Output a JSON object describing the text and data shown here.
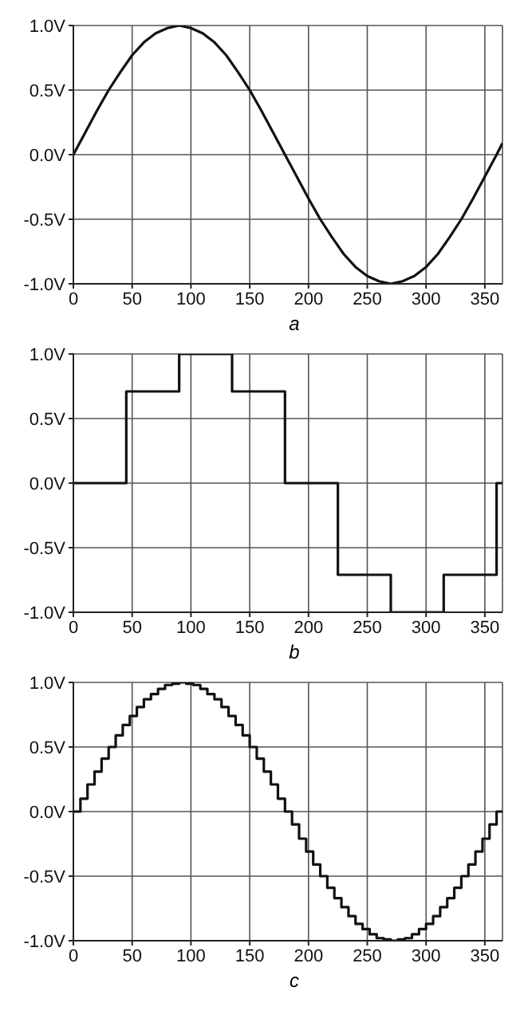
{
  "chart_data": [
    {
      "type": "line",
      "xlabel": "a",
      "x": [
        0,
        10,
        20,
        30,
        40,
        50,
        60,
        70,
        80,
        90,
        100,
        110,
        120,
        130,
        140,
        150,
        160,
        170,
        180,
        190,
        200,
        210,
        220,
        230,
        240,
        250,
        260,
        270,
        280,
        290,
        300,
        310,
        320,
        330,
        340,
        350,
        360,
        365
      ],
      "series": [
        {
          "color": "#111111",
          "values": [
            0,
            0.17,
            0.34,
            0.5,
            0.64,
            0.77,
            0.87,
            0.94,
            0.98,
            1,
            0.98,
            0.94,
            0.87,
            0.77,
            0.64,
            0.5,
            0.34,
            0.17,
            0,
            -0.17,
            -0.34,
            -0.5,
            -0.64,
            -0.77,
            -0.87,
            -0.94,
            -0.98,
            -1,
            -0.98,
            -0.94,
            -0.87,
            -0.77,
            -0.64,
            -0.5,
            -0.34,
            -0.17,
            0,
            0.09
          ]
        }
      ],
      "xlim": [
        0,
        365
      ],
      "xticks": [
        0,
        50,
        100,
        150,
        200,
        250,
        300,
        350
      ],
      "ylim": [
        -1,
        1
      ],
      "yticks": [
        {
          "value": -1,
          "label": "-1.0V"
        },
        {
          "value": -0.5,
          "label": "-0.5V"
        },
        {
          "value": 0,
          "label": "0.0V"
        },
        {
          "value": 0.5,
          "label": "0.5V"
        },
        {
          "value": 1,
          "label": "1.0V"
        }
      ],
      "grid": true
    },
    {
      "type": "step",
      "xlabel": "b",
      "x": [
        0,
        45,
        90,
        135,
        180,
        225,
        270,
        315,
        360,
        365
      ],
      "series": [
        {
          "color": "#111111",
          "values": [
            0,
            0.71,
            1,
            0.71,
            0,
            -0.71,
            -1,
            -0.71,
            0,
            0
          ]
        }
      ],
      "xlim": [
        0,
        365
      ],
      "xticks": [
        0,
        50,
        100,
        150,
        200,
        250,
        300,
        350
      ],
      "ylim": [
        -1,
        1
      ],
      "yticks": [
        {
          "value": -1,
          "label": "-1.0V"
        },
        {
          "value": -0.5,
          "label": "-0.5V"
        },
        {
          "value": 0,
          "label": "0.0V"
        },
        {
          "value": 0.5,
          "label": "0.5V"
        },
        {
          "value": 1,
          "label": "1.0V"
        }
      ],
      "grid": true
    },
    {
      "type": "step",
      "xlabel": "c",
      "x": [
        0,
        6,
        12,
        18,
        24,
        30,
        36,
        42,
        48,
        54,
        60,
        66,
        72,
        78,
        84,
        90,
        96,
        102,
        108,
        114,
        120,
        126,
        132,
        138,
        144,
        150,
        156,
        162,
        168,
        174,
        180,
        186,
        192,
        198,
        204,
        210,
        216,
        222,
        228,
        234,
        240,
        246,
        252,
        258,
        264,
        270,
        276,
        282,
        288,
        294,
        300,
        306,
        312,
        318,
        324,
        330,
        336,
        342,
        348,
        354,
        360,
        365
      ],
      "series": [
        {
          "color": "#111111",
          "values": [
            0,
            0.1,
            0.21,
            0.31,
            0.41,
            0.5,
            0.59,
            0.67,
            0.74,
            0.81,
            0.87,
            0.91,
            0.95,
            0.98,
            0.99,
            1,
            0.99,
            0.98,
            0.95,
            0.91,
            0.87,
            0.81,
            0.74,
            0.67,
            0.59,
            0.5,
            0.41,
            0.31,
            0.21,
            0.1,
            0,
            -0.1,
            -0.21,
            -0.31,
            -0.41,
            -0.5,
            -0.59,
            -0.67,
            -0.74,
            -0.81,
            -0.87,
            -0.91,
            -0.95,
            -0.98,
            -0.99,
            -1,
            -0.99,
            -0.98,
            -0.95,
            -0.91,
            -0.87,
            -0.81,
            -0.74,
            -0.67,
            -0.59,
            -0.5,
            -0.41,
            -0.31,
            -0.21,
            -0.1,
            0,
            0
          ]
        }
      ],
      "xlim": [
        0,
        365
      ],
      "xticks": [
        0,
        50,
        100,
        150,
        200,
        250,
        300,
        350
      ],
      "ylim": [
        -1,
        1
      ],
      "yticks": [
        {
          "value": -1,
          "label": "-1.0V"
        },
        {
          "value": -0.5,
          "label": "-0.5V"
        },
        {
          "value": 0,
          "label": "0.0V"
        },
        {
          "value": 0.5,
          "label": "0.5V"
        },
        {
          "value": 1,
          "label": "1.0V"
        }
      ],
      "grid": true
    }
  ]
}
